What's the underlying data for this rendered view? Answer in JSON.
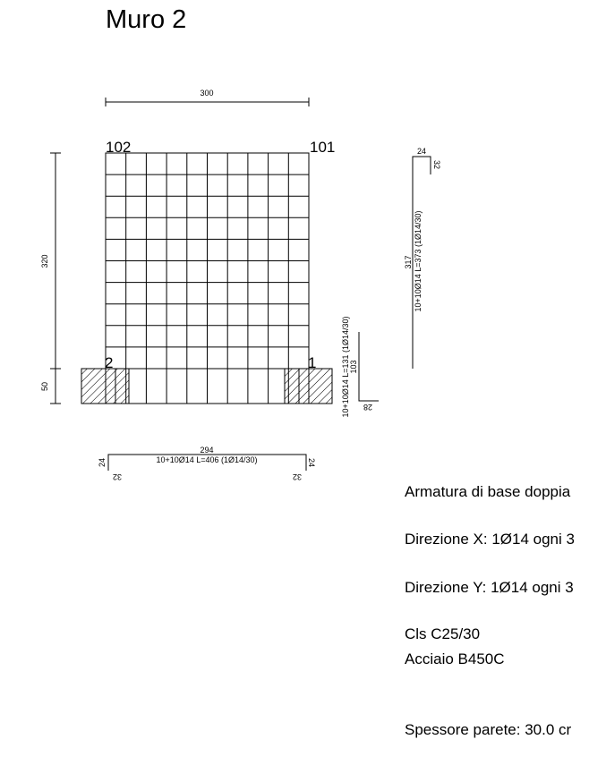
{
  "title": "Muro 2",
  "dims": {
    "width": "300",
    "height": "320",
    "footing": "50",
    "bar_vertical_length": "103",
    "bar_vertical_hook": "28",
    "bar_vertical_label": "10+10Ø14 L=131 (1Ø14/30)",
    "bar_right_top": "24",
    "bar_right_hook": "32",
    "bar_right_length": "317",
    "bar_right_label": "10+10Ø14 L=373 (1Ø14/30)",
    "bar_bottom_length": "294",
    "bar_bottom_label": "10+10Ø14 L=406 (1Ø14/30)",
    "bar_bottom_left_leg": "24",
    "bar_bottom_right_leg": "24",
    "bar_bottom_left_hook": "32",
    "bar_bottom_right_hook": "32"
  },
  "nodes": {
    "top_left": "102",
    "top_right": "101",
    "bottom_left": "2",
    "bottom_right": "1"
  },
  "notes": {
    "base": "Armatura di base doppia",
    "dir_x": "Direzione X: 1Ø14 ogni 3",
    "dir_y": "Direzione Y: 1Ø14 ogni 3",
    "cls": "Cls C25/30",
    "steel": "Acciaio B450C",
    "thickness": "Spessore parete: 30.0 cr"
  }
}
